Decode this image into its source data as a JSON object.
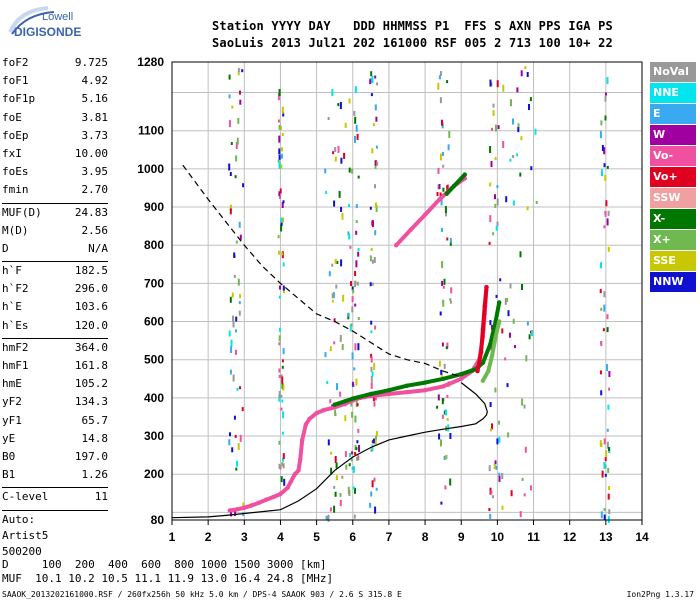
{
  "logo": {
    "line1": "Lowell",
    "line2": "DIGISONDE"
  },
  "header": {
    "row1": "Station YYYY DAY   DDD HHMMSS P1  FFS S AXN PPS IGA PS",
    "row2": "SaoLuis 2013 Jul21 202 161000 RSF 005 2 713 100 10+ 22"
  },
  "params": {
    "group1": [
      {
        "k": "foF2",
        "v": "9.725"
      },
      {
        "k": "foF1",
        "v": "4.92"
      },
      {
        "k": "foF1p",
        "v": "5.16"
      },
      {
        "k": "foE",
        "v": "3.81"
      },
      {
        "k": "foEp",
        "v": "3.73"
      },
      {
        "k": "fxI",
        "v": "10.00"
      },
      {
        "k": "foEs",
        "v": "3.95"
      },
      {
        "k": "fmin",
        "v": "2.70"
      }
    ],
    "group2": [
      {
        "k": "MUF(D)",
        "v": "24.83"
      },
      {
        "k": "M(D)",
        "v": "2.56"
      },
      {
        "k": "D",
        "v": "N/A"
      }
    ],
    "group3": [
      {
        "k": "h`F",
        "v": "182.5"
      },
      {
        "k": "h`F2",
        "v": "296.0"
      },
      {
        "k": "h`E",
        "v": "103.6"
      },
      {
        "k": "h`Es",
        "v": "120.0"
      }
    ],
    "group4": [
      {
        "k": "hmF2",
        "v": "364.0"
      },
      {
        "k": "hmF1",
        "v": "161.8"
      },
      {
        "k": "hmE",
        "v": "105.2"
      },
      {
        "k": "yF2",
        "v": "134.3"
      },
      {
        "k": "yF1",
        "v": "65.7"
      },
      {
        "k": "yE",
        "v": "14.8"
      },
      {
        "k": "B0",
        "v": "197.0"
      },
      {
        "k": "B1",
        "v": "1.26"
      }
    ],
    "clevel": {
      "k": "C-level",
      "v": "11"
    },
    "auto": [
      "Auto:",
      "Artist5",
      "500200"
    ]
  },
  "legend": [
    {
      "label": "NoVal",
      "color": "#999999"
    },
    {
      "label": "NNE",
      "color": "#00e5ee"
    },
    {
      "label": "E",
      "color": "#39a9f0"
    },
    {
      "label": "W",
      "color": "#a000a0"
    },
    {
      "label": "Vo-",
      "color": "#f050a0"
    },
    {
      "label": "Vo+",
      "color": "#e00020"
    },
    {
      "label": "SSW",
      "color": "#f0a0a0"
    },
    {
      "label": "X-",
      "color": "#007800"
    },
    {
      "label": "X+",
      "color": "#70b850"
    },
    {
      "label": "SSE",
      "color": "#c8c800"
    },
    {
      "label": "NNW",
      "color": "#1010d0"
    }
  ],
  "footer": {
    "row1": "D     100  200  400  600  800 1000 1500 3000 [km]",
    "row2": "MUF  10.1 10.2 10.5 11.1 11.9 13.0 16.4 24.8 [MHz]",
    "file": "SAAOK_2013202161000.RSF / 260fx256h 50 kHz 5.0 km / DPS-4 SAAOK 903 / 2.6 S 315.8 E",
    "version": "Ion2Png 1.3.17"
  },
  "chart_data": {
    "type": "scatter",
    "xlim": [
      1,
      14
    ],
    "ylim": [
      80,
      1280
    ],
    "xticks": [
      "1",
      "2",
      "3",
      "4",
      "5",
      "6",
      "7",
      "8",
      "9",
      "10",
      "11",
      "12",
      "13",
      "14"
    ],
    "yticks": [
      "80",
      "200",
      "300",
      "400",
      "500",
      "600",
      "700",
      "800",
      "900",
      "1000",
      "1100",
      "1280"
    ],
    "grid": true,
    "series": [
      {
        "name": "Vo-",
        "color": "#f050a0",
        "type": "trace",
        "x": [
          2.6,
          2.8,
          3.0,
          3.2,
          3.4,
          3.6,
          3.8,
          4.0,
          4.2,
          4.4,
          4.5,
          4.55,
          4.6,
          4.7,
          4.8,
          5.0,
          5.2,
          5.5,
          5.8,
          6.0,
          6.2,
          6.5,
          7.0,
          7.5,
          8.0,
          8.5,
          9.0,
          9.3,
          9.5,
          9.6,
          9.65,
          9.7
        ],
        "y": [
          105,
          108,
          112,
          118,
          125,
          133,
          140,
          148,
          165,
          200,
          210,
          240,
          290,
          330,
          345,
          360,
          368,
          375,
          385,
          393,
          400,
          405,
          410,
          415,
          420,
          430,
          450,
          470,
          500,
          560,
          620,
          690
        ]
      },
      {
        "name": "X-",
        "color": "#007800",
        "type": "trace",
        "x": [
          5.5,
          6.0,
          6.5,
          7.0,
          7.5,
          8.0,
          8.5,
          9.0,
          9.4,
          9.6,
          9.8,
          9.95,
          10.05
        ],
        "y": [
          382,
          398,
          410,
          420,
          432,
          440,
          450,
          462,
          475,
          492,
          540,
          600,
          650
        ]
      },
      {
        "name": "Vo+",
        "color": "#e00020",
        "type": "trace",
        "x": [
          9.45,
          9.55,
          9.6,
          9.65,
          9.7
        ],
        "y": [
          470,
          520,
          580,
          640,
          690
        ]
      },
      {
        "name": "Vo- 2F",
        "color": "#f050a0",
        "type": "trace",
        "x": [
          7.2,
          7.6,
          8.0,
          8.4,
          8.8,
          9.1
        ],
        "y": [
          800,
          840,
          880,
          920,
          955,
          975
        ]
      },
      {
        "name": "X- 2F",
        "color": "#007800",
        "type": "trace",
        "x": [
          8.6,
          8.8,
          9.0,
          9.1
        ],
        "y": [
          935,
          955,
          975,
          985
        ]
      },
      {
        "name": "X+",
        "color": "#70b850",
        "type": "trace",
        "x": [
          9.6,
          9.75,
          9.85,
          9.95,
          10.05
        ],
        "y": [
          445,
          470,
          510,
          560,
          600
        ]
      },
      {
        "name": "profile",
        "color": "#000000",
        "type": "line",
        "x": [
          1,
          2,
          2.5,
          3,
          3.5,
          4,
          4.5,
          5,
          5.5,
          6,
          6.5,
          7,
          7.5,
          8,
          8.5,
          9,
          9.4,
          9.6,
          9.7,
          9.72,
          9.65,
          9.4,
          9.0
        ],
        "y": [
          86,
          88,
          92,
          97,
          102,
          107,
          130,
          162,
          210,
          245,
          270,
          290,
          300,
          310,
          318,
          325,
          332,
          345,
          355,
          364,
          385,
          410,
          440
        ]
      },
      {
        "name": "extrapolated",
        "color": "#000000",
        "type": "dashed",
        "x": [
          1.3,
          2.0,
          2.5,
          3.0,
          3.5,
          4.0,
          4.5,
          5.0,
          5.5,
          6.0,
          6.5,
          7.0,
          7.5,
          8.0,
          8.5,
          9.0
        ],
        "y": [
          1010,
          920,
          860,
          800,
          745,
          700,
          660,
          620,
          600,
          575,
          545,
          515,
          500,
          490,
          470,
          455
        ]
      }
    ]
  }
}
